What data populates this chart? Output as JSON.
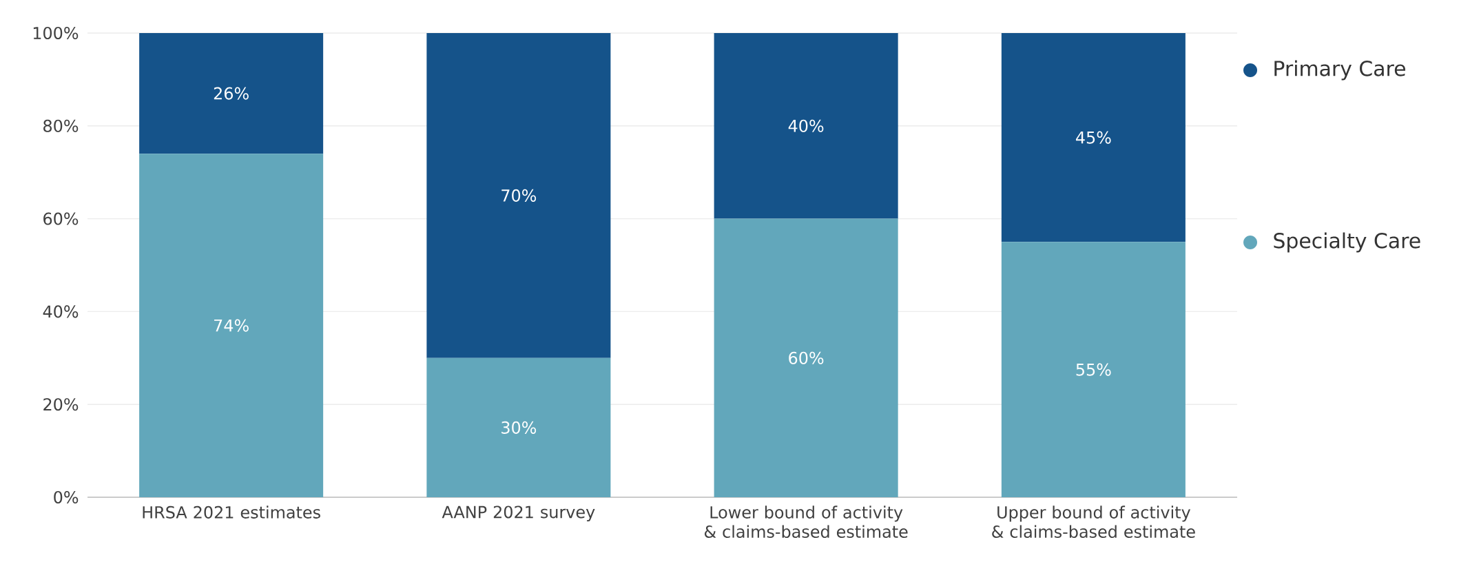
{
  "chart_data": {
    "type": "bar",
    "stacked": true,
    "categories": [
      "HRSA 2021 estimates",
      "AANP 2021 survey",
      "Lower bound of activity & claims-based estimate",
      "Upper bound of activity & claims-based estimate"
    ],
    "series": [
      {
        "name": "Specialty Care",
        "color": "#62a7bb",
        "values": [
          74,
          30,
          60,
          55
        ],
        "value_labels": [
          "74%",
          "30%",
          "60%",
          "55%"
        ]
      },
      {
        "name": "Primary Care",
        "color": "#15538a",
        "values": [
          26,
          70,
          40,
          45
        ],
        "value_labels": [
          "26%",
          "70%",
          "40%",
          "45%"
        ]
      }
    ],
    "ylim": [
      0,
      100
    ],
    "yticks": [
      {
        "value": 0,
        "label": "0%"
      },
      {
        "value": 20,
        "label": "20%"
      },
      {
        "value": 40,
        "label": "40%"
      },
      {
        "value": 60,
        "label": "60%"
      },
      {
        "value": 80,
        "label": "80%"
      },
      {
        "value": 100,
        "label": "100%"
      }
    ],
    "grid": "y",
    "legend": "right"
  }
}
